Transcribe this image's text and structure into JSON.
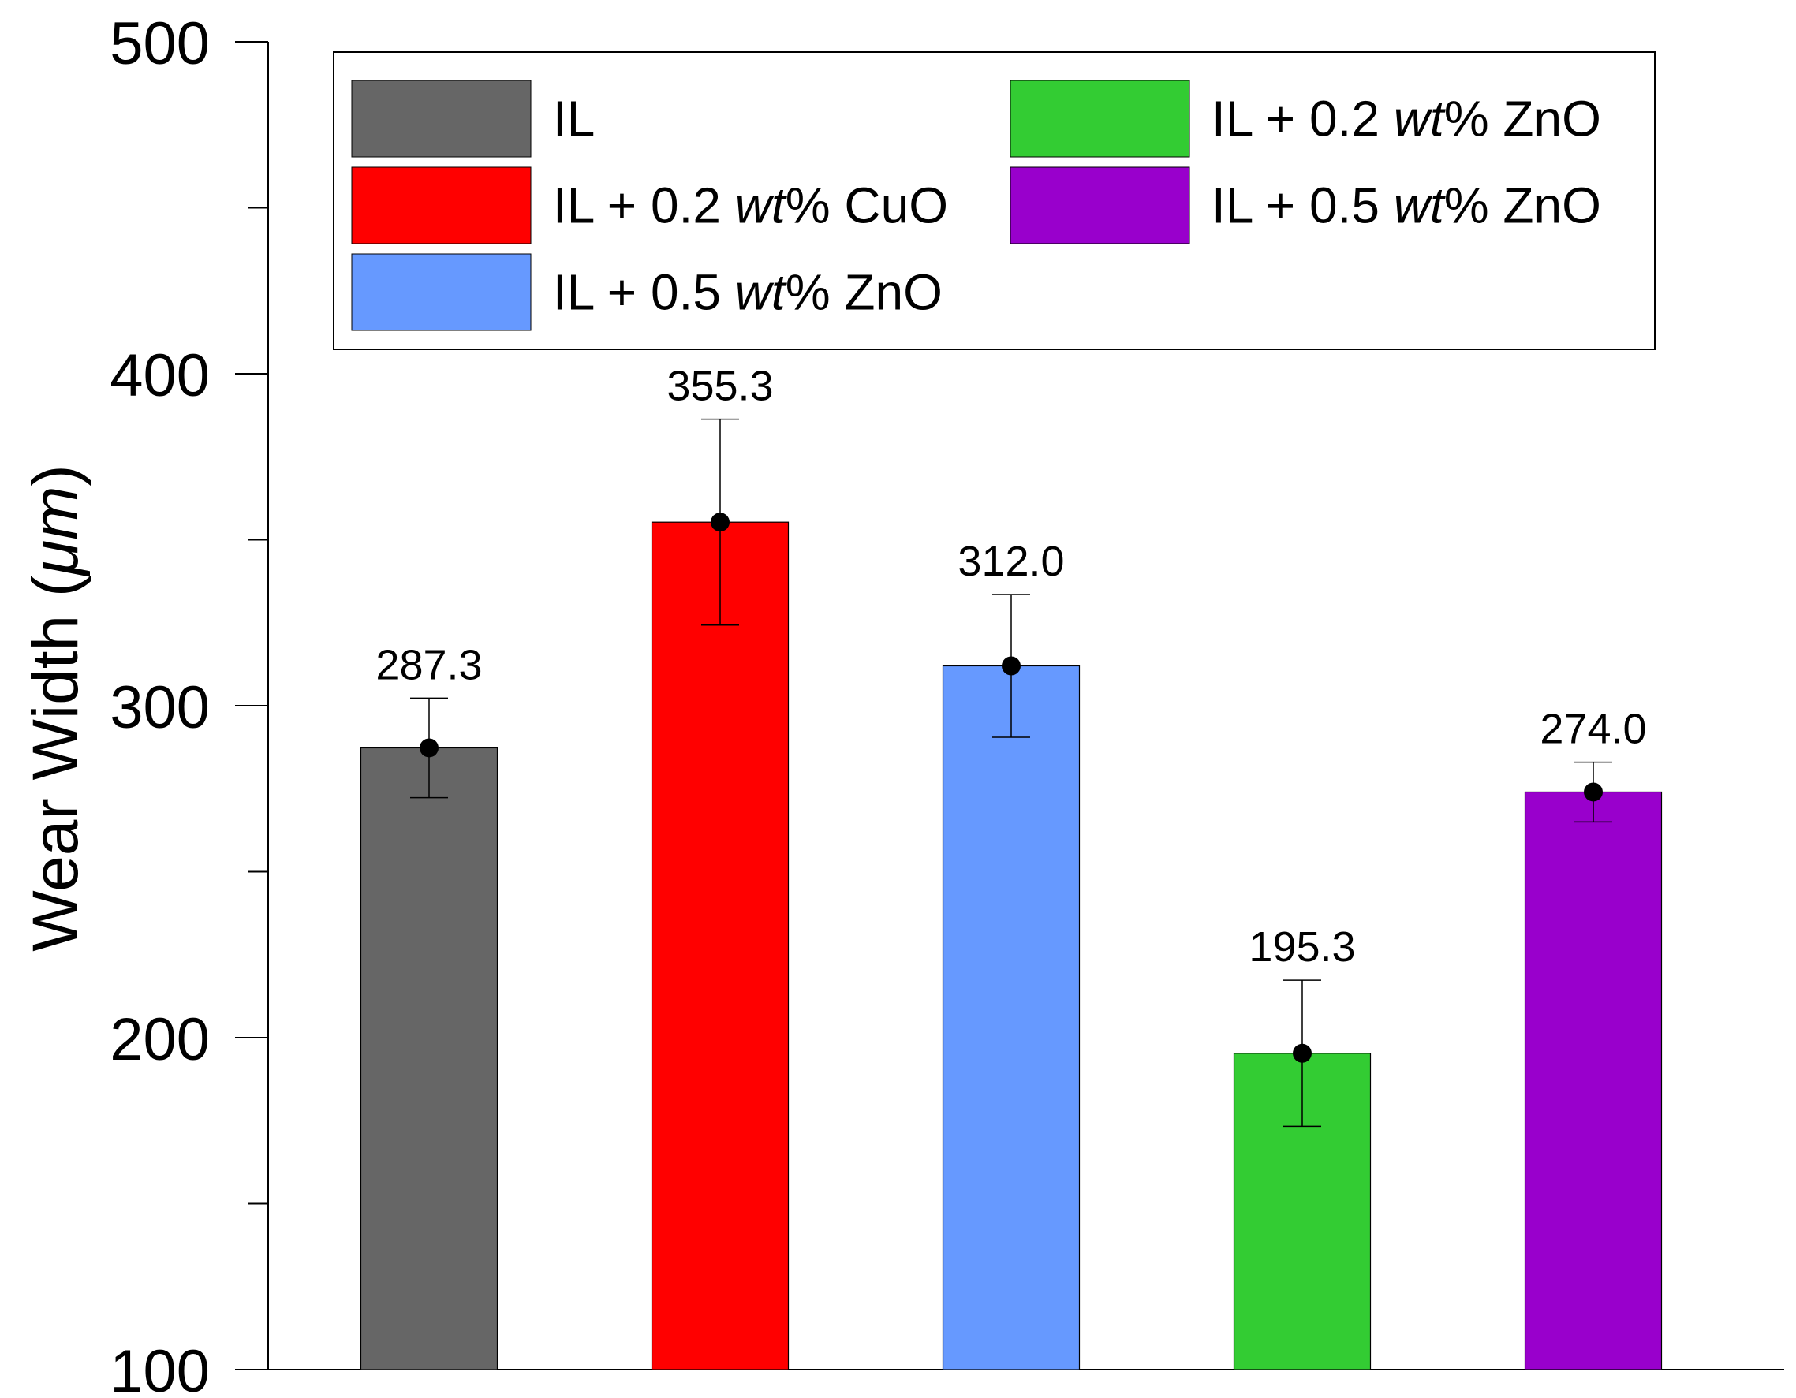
{
  "chart_data": {
    "type": "bar",
    "title": "",
    "xlabel": "",
    "ylabel": "Wear Width (μm)",
    "ylabel_parts": {
      "prefix": "Wear Width (",
      "unit": "μm",
      "suffix": ")"
    },
    "ylim": [
      100,
      500
    ],
    "yticks_major": [
      100,
      200,
      300,
      400,
      500
    ],
    "yticks_minor": [
      150,
      250,
      350,
      450
    ],
    "ytick_labels": [
      "100",
      "200",
      "300",
      "400",
      "500"
    ],
    "grid": false,
    "legend_position": "top",
    "categories": [
      "IL",
      "IL + 0.2 wt% CuO",
      "IL + 0.5 wt% ZnO",
      "IL + 0.2 wt% ZnO",
      "IL + 0.5 wt% ZnO"
    ],
    "series": [
      {
        "name": "IL",
        "name_parts": [
          "IL",
          "",
          ""
        ],
        "value": 287.3,
        "label": "287.3",
        "error_plus": 15.0,
        "error_minus": 15.0,
        "color": "#666666"
      },
      {
        "name": "IL + 0.2 wt% CuO",
        "name_parts": [
          "IL + 0.2 ",
          "wt",
          "% CuO"
        ],
        "value": 355.3,
        "label": "355.3",
        "error_plus": 31.0,
        "error_minus": 31.0,
        "color": "#ff0000"
      },
      {
        "name": "IL + 0.5 wt% ZnO",
        "name_parts": [
          "IL + 0.5 ",
          "wt",
          "% ZnO"
        ],
        "value": 312.0,
        "label": "312.0",
        "error_plus": 21.5,
        "error_minus": 21.5,
        "color": "#6699ff"
      },
      {
        "name": "IL + 0.2 wt% ZnO",
        "name_parts": [
          "IL + 0.2 ",
          "wt",
          "% ZnO"
        ],
        "value": 195.3,
        "label": "195.3",
        "error_plus": 22.0,
        "error_minus": 22.0,
        "color": "#33cc33"
      },
      {
        "name": "IL + 0.5 wt% ZnO",
        "name_parts": [
          "IL + 0.5 ",
          "wt",
          "% ZnO"
        ],
        "value": 274.0,
        "label": "274.0",
        "error_plus": 9.0,
        "error_minus": 9.0,
        "color": "#9900cc"
      }
    ],
    "legend_order": [
      0,
      1,
      2,
      3,
      4
    ]
  }
}
